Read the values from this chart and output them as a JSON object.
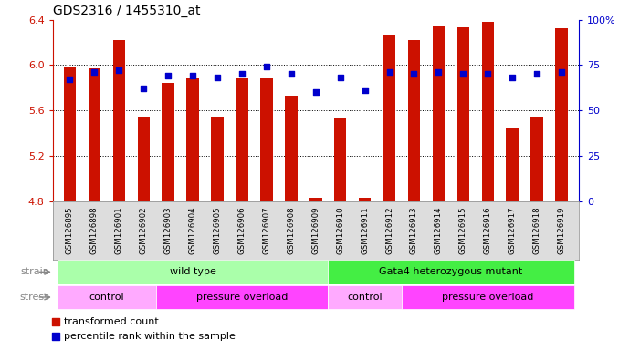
{
  "title": "GDS2316 / 1455310_at",
  "samples": [
    "GSM126895",
    "GSM126898",
    "GSM126901",
    "GSM126902",
    "GSM126903",
    "GSM126904",
    "GSM126905",
    "GSM126906",
    "GSM126907",
    "GSM126908",
    "GSM126909",
    "GSM126910",
    "GSM126911",
    "GSM126912",
    "GSM126913",
    "GSM126914",
    "GSM126915",
    "GSM126916",
    "GSM126917",
    "GSM126918",
    "GSM126919"
  ],
  "transformed_counts": [
    5.99,
    5.97,
    6.22,
    5.55,
    5.84,
    5.88,
    5.55,
    5.88,
    5.88,
    5.73,
    4.83,
    5.54,
    4.83,
    6.27,
    6.22,
    6.35,
    6.33,
    6.38,
    5.45,
    5.55,
    6.32
  ],
  "percentile_ranks": [
    67,
    71,
    72,
    62,
    69,
    69,
    68,
    70,
    74,
    70,
    60,
    68,
    61,
    71,
    70,
    71,
    70,
    70,
    68,
    70,
    71
  ],
  "ylim_left": [
    4.8,
    6.4
  ],
  "ylim_right": [
    0,
    100
  ],
  "yticks_left": [
    4.8,
    5.2,
    5.6,
    6.0,
    6.4
  ],
  "yticks_right": [
    0,
    25,
    50,
    75,
    100
  ],
  "bar_color": "#CC1100",
  "dot_color": "#0000CC",
  "bg_color": "#FFFFFF",
  "xtick_bg_color": "#DDDDDD",
  "strain_wt_color": "#AAFFAA",
  "strain_mut_color": "#44EE44",
  "stress_ctrl_color": "#FFAAFF",
  "stress_po_color": "#FF44FF",
  "strain_groups": [
    {
      "label": "wild type",
      "start": 0,
      "end": 11
    },
    {
      "label": "Gata4 heterozygous mutant",
      "start": 11,
      "end": 21
    }
  ],
  "stress_groups": [
    {
      "label": "control",
      "start": 0,
      "end": 4
    },
    {
      "label": "pressure overload",
      "start": 4,
      "end": 11
    },
    {
      "label": "control",
      "start": 11,
      "end": 14
    },
    {
      "label": "pressure overload",
      "start": 14,
      "end": 21
    }
  ],
  "legend_bar_label": "transformed count",
  "legend_dot_label": "percentile rank within the sample",
  "strain_label": "strain",
  "stress_label": "stress",
  "bar_width": 0.5
}
